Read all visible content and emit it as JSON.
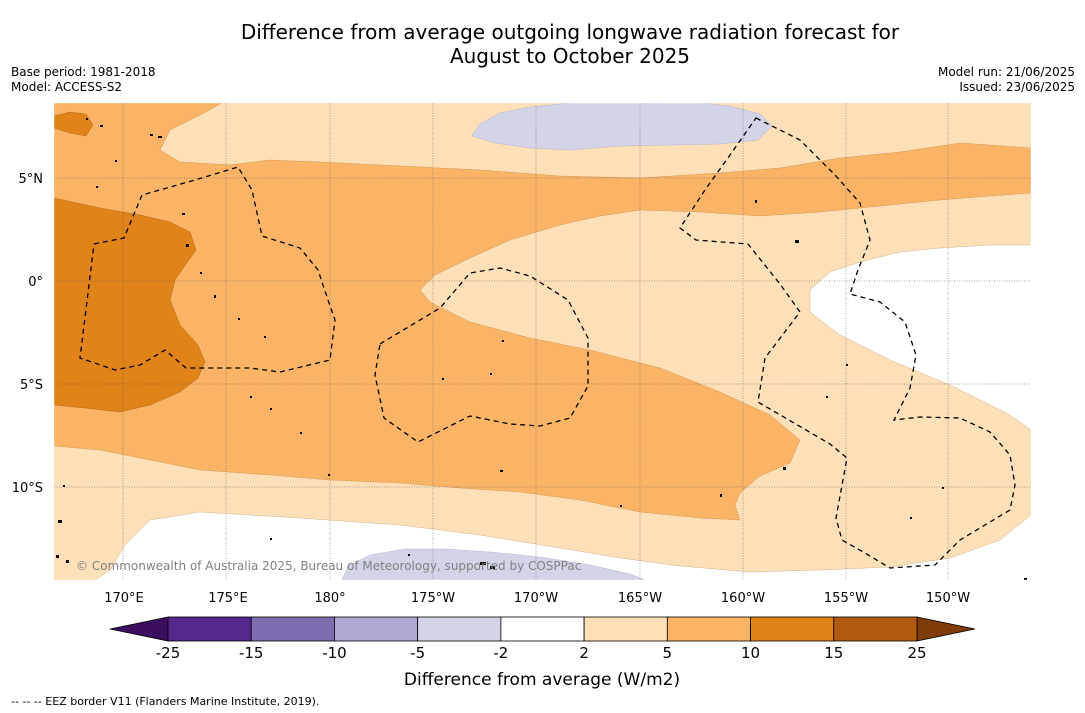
{
  "title": {
    "line1": "Difference from average outgoing longwave radiation forecast for",
    "line2": "August to October 2025"
  },
  "meta_left": {
    "base_period": "Base period: 1981-2018",
    "model": "Model: ACCESS-S2"
  },
  "meta_right": {
    "model_run": "Model run: 21/06/2025",
    "issued": "Issued: 23/06/2025"
  },
  "map": {
    "lat_labels": [
      "5°N",
      "0°",
      "5°S",
      "10°S"
    ],
    "lon_labels": [
      "170°E",
      "175°E",
      "180°",
      "175°W",
      "170°W",
      "165°W",
      "160°W",
      "155°W",
      "150°W"
    ],
    "copyright": "© Commonwealth of Australia 2025, Bureau of Meteorology, supported by COSPPac",
    "colors": {
      "lt_purple": "#d4d4e8",
      "pale_orange": "#fde0b8",
      "orange": "#fbb466",
      "dark_orange": "#e08318"
    }
  },
  "colorbar": {
    "title": "Difference from average (W/m2)",
    "ticks": [
      "-25",
      "-15",
      "-10",
      "-5",
      "-2",
      "2",
      "5",
      "10",
      "15",
      "25"
    ],
    "colors": [
      "#55288d",
      "#7e6eb0",
      "#afa8d2",
      "#d4d4e8",
      "#ffffff",
      "#fde0b8",
      "#fbb466",
      "#e08318",
      "#b25a0d"
    ],
    "under_color": "#3a0d5e",
    "over_color": "#7f3b08"
  },
  "footer": "--  --  -- EEZ border V11 (Flanders Marine Institute, 2019)."
}
